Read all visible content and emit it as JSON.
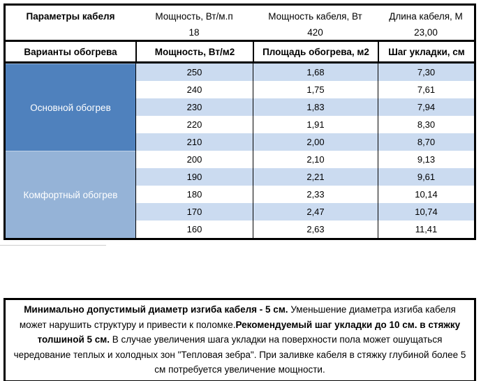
{
  "params_table": {
    "headers": [
      "Параметры кабеля",
      "Мощность, Вт/м.п",
      "Мощность кабеля, Вт",
      "Длина кабеля, М"
    ],
    "values": [
      "18",
      "420",
      "23,00"
    ]
  },
  "variants_table": {
    "headers": [
      "Варианты обогрева",
      "Мощность, Вт/м2",
      "Площадь обогрева, м2",
      "Шаг укладки, см"
    ],
    "sections": [
      {
        "label": "Основной обогрев",
        "color": "#4f81bd",
        "rows": [
          [
            "250",
            "1,68",
            "7,30"
          ],
          [
            "240",
            "1,75",
            "7,61"
          ],
          [
            "230",
            "1,83",
            "7,94"
          ],
          [
            "220",
            "1,91",
            "8,30"
          ],
          [
            "210",
            "2,00",
            "8,70"
          ]
        ]
      },
      {
        "label": "Комфортный обогрев",
        "color": "#95b3d7",
        "rows": [
          [
            "200",
            "2,10",
            "9,13"
          ],
          [
            "190",
            "2,21",
            "9,61"
          ],
          [
            "180",
            "2,33",
            "10,14"
          ],
          [
            "170",
            "2,47",
            "10,74"
          ],
          [
            "160",
            "2,63",
            "11,41"
          ]
        ]
      }
    ]
  },
  "note": {
    "segments": [
      {
        "text": "Минимально допустимый диаметр изгиба кабеля - 5 см.",
        "bold": true
      },
      {
        "text": "  Уменьшение диаметра изгиба кабеля может нарушить структуру и привести к поломке.",
        "bold": false
      },
      {
        "text": "Рекомендуемый шаг укладки до 10 см. в стяжку толшиной 5 см.",
        "bold": true
      },
      {
        "text": " В  случае увеличения шага укладки на поверхности пола может ошущаться чередование теплых и холодных зон \"Тепловая зебра\". При заливке кабеля в стяжку глубиной более 5 см потребуется увеличение мощности.",
        "bold": false
      }
    ]
  },
  "colors": {
    "section_primary": "#4f81bd",
    "section_comfort": "#95b3d7",
    "band": "#cbdbf0",
    "border": "#000000"
  }
}
